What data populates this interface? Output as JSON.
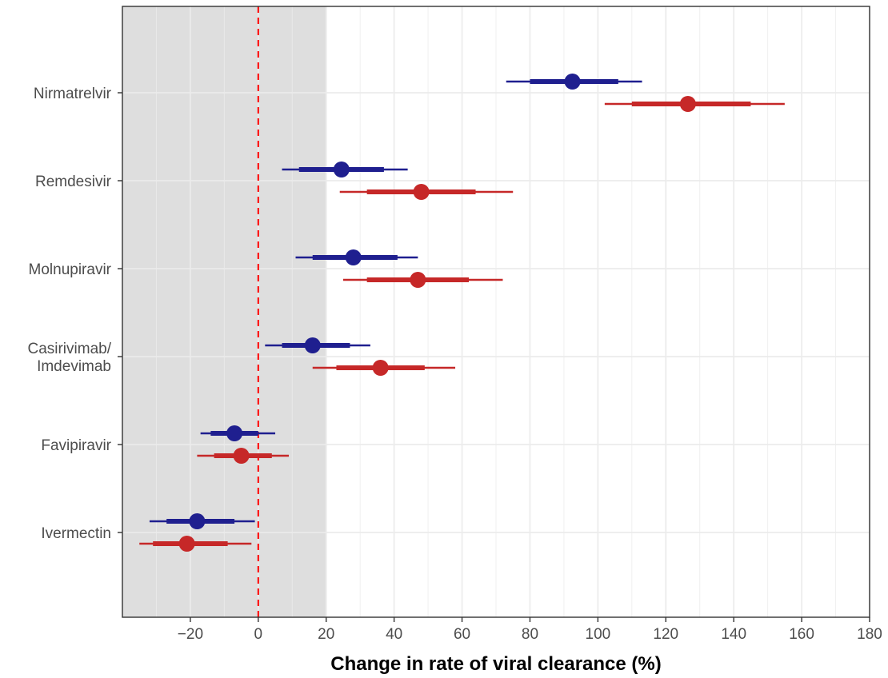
{
  "chart_data": {
    "type": "forest",
    "title": "",
    "xlabel": "Change in rate of viral clearance (%)",
    "ylabel": "",
    "xlim": [
      -40,
      180
    ],
    "x_ticks": [
      -20,
      0,
      20,
      40,
      60,
      80,
      100,
      120,
      140,
      160,
      180
    ],
    "x_tick_labels": [
      "−20",
      "0",
      "20",
      "40",
      "60",
      "80",
      "100",
      "120",
      "140",
      "160",
      "180"
    ],
    "grid": true,
    "reference_line": 0,
    "shaded_region": [
      -40,
      20
    ],
    "categories": [
      {
        "lines": [
          "Nirmatrelvir"
        ]
      },
      {
        "lines": [
          "Remdesivir"
        ]
      },
      {
        "lines": [
          "Molnupiravir"
        ]
      },
      {
        "lines": [
          "Casirivimab/",
          "Imdevimab"
        ]
      },
      {
        "lines": [
          "Favipiravir"
        ]
      },
      {
        "lines": [
          "Ivermectin"
        ]
      }
    ],
    "series": [
      {
        "color": "#1f1f8f",
        "estimates": [
          92.5,
          24.5,
          28,
          16,
          -7,
          -18
        ],
        "ci80": [
          [
            80,
            106
          ],
          [
            12,
            37
          ],
          [
            16,
            41
          ],
          [
            7,
            27
          ],
          [
            -14,
            0
          ],
          [
            -27,
            -7
          ]
        ],
        "ci95": [
          [
            73,
            113
          ],
          [
            7,
            44
          ],
          [
            11,
            47
          ],
          [
            2,
            33
          ],
          [
            -17,
            5
          ],
          [
            -32,
            -1
          ]
        ]
      },
      {
        "color": "#c62828",
        "estimates": [
          126.5,
          48,
          47,
          36,
          -5,
          -21
        ],
        "ci80": [
          [
            110,
            145
          ],
          [
            32,
            64
          ],
          [
            32,
            62
          ],
          [
            23,
            49
          ],
          [
            -13,
            4
          ],
          [
            -31,
            -9
          ]
        ],
        "ci95": [
          [
            102,
            155
          ],
          [
            24,
            75
          ],
          [
            25,
            72
          ],
          [
            16,
            58
          ],
          [
            -18,
            9
          ],
          [
            -35,
            -2
          ]
        ]
      }
    ],
    "colors": {
      "shade": "#dedede",
      "grid": "#ebebeb",
      "reference": "#ff0000",
      "panel_border": "#333333",
      "tick_text": "#4d4d4d"
    }
  }
}
